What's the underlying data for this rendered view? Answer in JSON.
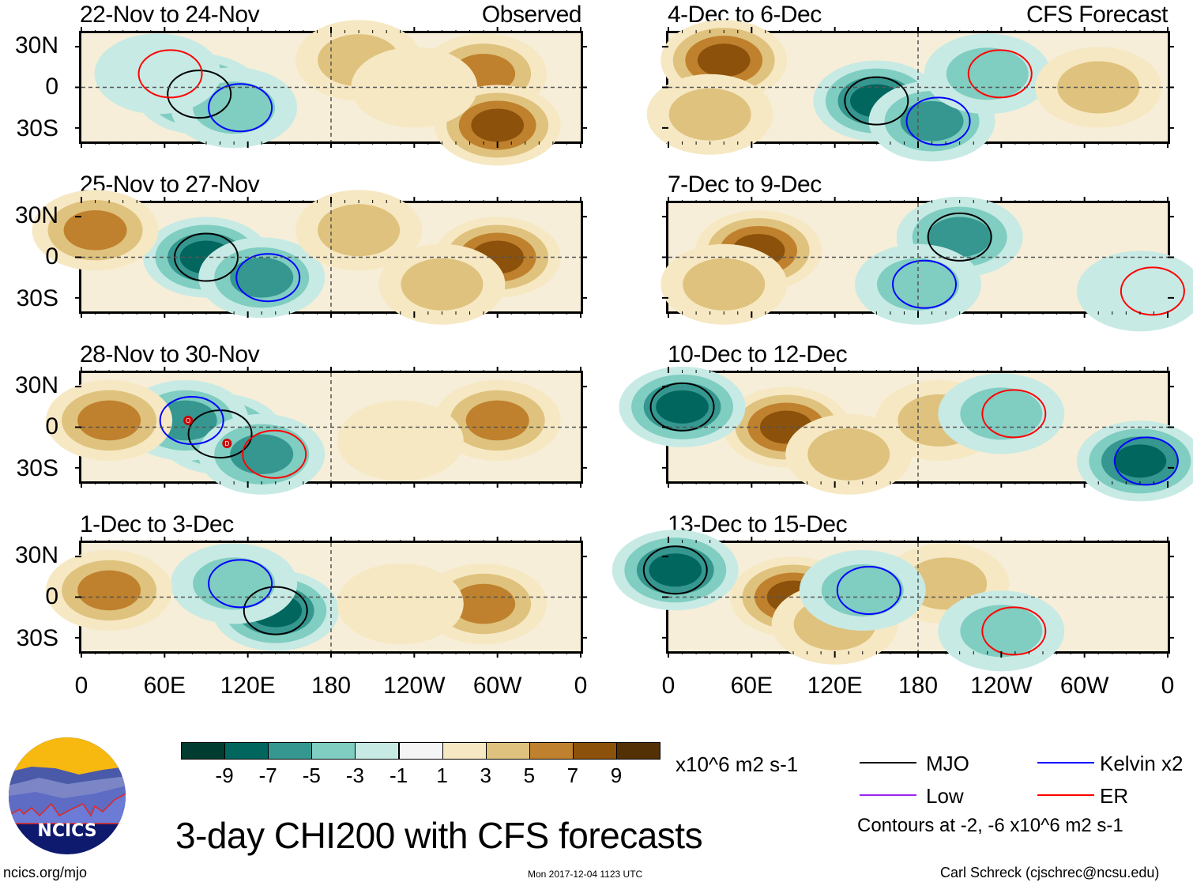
{
  "chart_data": [
    {
      "type": "heatmap",
      "title": "3-day CHI200 with CFS forecasts",
      "subtitle_tag": "Observed",
      "panels": [
        {
          "period": "22-Nov to 24-Nov",
          "source": "Observed",
          "features": [
            {
              "kind": "fill",
              "lon": 85,
              "lat": -5,
              "value": -8
            },
            {
              "kind": "fill",
              "lon": 110,
              "lat": -15,
              "value": -5
            },
            {
              "kind": "fill",
              "lon": 55,
              "lat": 10,
              "value": -3
            },
            {
              "kind": "fill",
              "lon": 200,
              "lat": 20,
              "value": 5
            },
            {
              "kind": "fill",
              "lon": 290,
              "lat": 10,
              "value": 6
            },
            {
              "kind": "fill",
              "lon": 300,
              "lat": -28,
              "value": 8
            },
            {
              "kind": "fill",
              "lon": 240,
              "lat": 0,
              "value": 3
            }
          ]
        },
        {
          "period": "25-Nov to 27-Nov",
          "source": "Observed",
          "features": [
            {
              "kind": "fill",
              "lon": 90,
              "lat": 0,
              "value": -9
            },
            {
              "kind": "fill",
              "lon": 130,
              "lat": -15,
              "value": -6
            },
            {
              "kind": "fill",
              "lon": 10,
              "lat": 20,
              "value": 7
            },
            {
              "kind": "fill",
              "lon": 300,
              "lat": 0,
              "value": 9
            },
            {
              "kind": "fill",
              "lon": 260,
              "lat": -20,
              "value": 5
            },
            {
              "kind": "fill",
              "lon": 200,
              "lat": 20,
              "value": 4
            }
          ]
        },
        {
          "period": "28-Nov to 30-Nov",
          "source": "Observed",
          "features": [
            {
              "kind": "fill",
              "lon": 100,
              "lat": -5,
              "value": -9
            },
            {
              "kind": "fill",
              "lon": 75,
              "lat": 5,
              "value": -7
            },
            {
              "kind": "fill",
              "lon": 130,
              "lat": -20,
              "value": -6
            },
            {
              "kind": "fill",
              "lon": 20,
              "lat": 5,
              "value": 6
            },
            {
              "kind": "fill",
              "lon": 300,
              "lat": 5,
              "value": 7
            },
            {
              "kind": "fill",
              "lon": 230,
              "lat": -10,
              "value": 3
            }
          ],
          "storm_labels": [
            "O",
            "D"
          ]
        },
        {
          "period": "1-Dec to 3-Dec",
          "source": "Observed",
          "features": [
            {
              "kind": "fill",
              "lon": 140,
              "lat": -10,
              "value": -9
            },
            {
              "kind": "fill",
              "lon": 110,
              "lat": 10,
              "value": -5
            },
            {
              "kind": "fill",
              "lon": 20,
              "lat": 5,
              "value": 6
            },
            {
              "kind": "fill",
              "lon": 290,
              "lat": -5,
              "value": 6
            },
            {
              "kind": "fill",
              "lon": 230,
              "lat": -5,
              "value": 3
            }
          ]
        },
        {
          "period": "4-Dec to 6-Dec",
          "source": "CFS Forecast",
          "features": [
            {
              "kind": "fill",
              "lon": 40,
              "lat": 20,
              "value": 9
            },
            {
              "kind": "fill",
              "lon": 30,
              "lat": -20,
              "value": 5
            },
            {
              "kind": "fill",
              "lon": 150,
              "lat": -10,
              "value": -9
            },
            {
              "kind": "fill",
              "lon": 190,
              "lat": -25,
              "value": -7
            },
            {
              "kind": "fill",
              "lon": 230,
              "lat": 10,
              "value": -4
            },
            {
              "kind": "fill",
              "lon": 310,
              "lat": 0,
              "value": 5
            }
          ]
        },
        {
          "period": "7-Dec to 9-Dec",
          "source": "CFS Forecast",
          "features": [
            {
              "kind": "fill",
              "lon": 65,
              "lat": 5,
              "value": 9
            },
            {
              "kind": "fill",
              "lon": 40,
              "lat": -20,
              "value": 4
            },
            {
              "kind": "fill",
              "lon": 210,
              "lat": 15,
              "value": -7
            },
            {
              "kind": "fill",
              "lon": 180,
              "lat": -20,
              "value": -5
            },
            {
              "kind": "fill",
              "lon": 340,
              "lat": -25,
              "value": -3
            }
          ]
        },
        {
          "period": "10-Dec to 12-Dec",
          "source": "CFS Forecast",
          "features": [
            {
              "kind": "fill",
              "lon": 85,
              "lat": 0,
              "value": 9
            },
            {
              "kind": "fill",
              "lon": 130,
              "lat": -20,
              "value": 4
            },
            {
              "kind": "fill",
              "lon": 195,
              "lat": 5,
              "value": 4
            },
            {
              "kind": "fill",
              "lon": 10,
              "lat": 15,
              "value": -8
            },
            {
              "kind": "fill",
              "lon": 340,
              "lat": -25,
              "value": -8
            },
            {
              "kind": "fill",
              "lon": 240,
              "lat": 10,
              "value": -5
            }
          ]
        },
        {
          "period": "13-Dec to 15-Dec",
          "source": "CFS Forecast",
          "features": [
            {
              "kind": "fill",
              "lon": 90,
              "lat": 0,
              "value": 8
            },
            {
              "kind": "fill",
              "lon": 120,
              "lat": -20,
              "value": 5
            },
            {
              "kind": "fill",
              "lon": 200,
              "lat": 10,
              "value": 5
            },
            {
              "kind": "fill",
              "lon": 5,
              "lat": 20,
              "value": -8
            },
            {
              "kind": "fill",
              "lon": 140,
              "lat": 5,
              "value": -4
            },
            {
              "kind": "fill",
              "lon": 240,
              "lat": -25,
              "value": -5
            }
          ]
        }
      ],
      "yticks": [
        "30N",
        "0",
        "30S"
      ],
      "ylim": [
        -40,
        40
      ],
      "xticks": [
        "0",
        "60E",
        "120E",
        "180",
        "120W",
        "60W",
        "0"
      ],
      "xlim": [
        0,
        360
      ],
      "colorbar": {
        "ticks": [
          "-9",
          "-7",
          "-5",
          "-3",
          "-1",
          "1",
          "3",
          "5",
          "7",
          "9"
        ],
        "colors": [
          "#003c30",
          "#01665e",
          "#35978f",
          "#80cdc1",
          "#c7eae5",
          "#f5f5f5",
          "#f6e8c3",
          "#dfc27d",
          "#bf812d",
          "#8c510a",
          "#543005"
        ],
        "units": "x10^6 m2 s-1"
      },
      "legend": {
        "placement": "bottom-right",
        "entries": [
          {
            "label": "MJO",
            "color": "#000000"
          },
          {
            "label": "Kelvin x2",
            "color": "#0000ff"
          },
          {
            "label": "Low",
            "color": "#a020f0"
          },
          {
            "label": "ER",
            "color": "#ff0000"
          }
        ],
        "note": "Contours at -2, -6 x10^6 m2 s-1"
      }
    }
  ],
  "header": {
    "left_tag": "Observed",
    "right_tag": "CFS Forecast"
  },
  "footer": {
    "logo_text": "NCICS",
    "url": "ncics.org/mjo",
    "timestamp": "Mon 2017-12-04 1123 UTC",
    "credit": "Carl Schreck (cjschrec@ncsu.edu)"
  }
}
